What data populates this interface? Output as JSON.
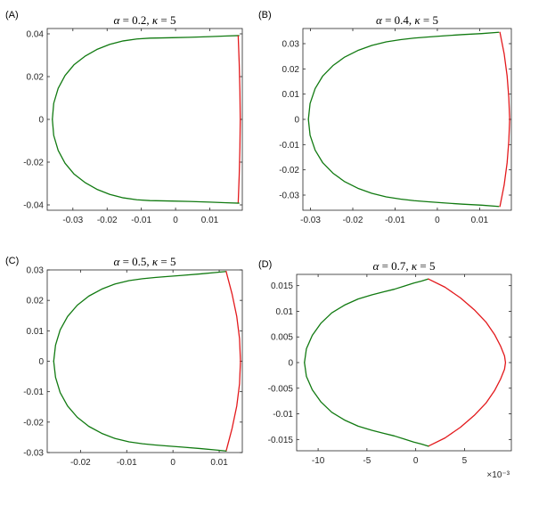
{
  "colors": {
    "boundary_green": "#117a11",
    "boundary_red": "#e3191c",
    "axes": "#262626"
  },
  "chart_data": [
    {
      "type": "line",
      "panel": "(A)",
      "title": {
        "alpha": "0.2",
        "kappa": "5"
      },
      "xlim": [
        -0.0375,
        0.0195
      ],
      "ylim": [
        -0.0425,
        0.0425
      ],
      "xticks": [
        -0.03,
        -0.02,
        -0.01,
        0,
        0.01
      ],
      "yticks": [
        -0.04,
        -0.02,
        0,
        0.02,
        0.04
      ],
      "tick_decimals": 2,
      "exponent_label": "",
      "series": [
        {
          "color": "green",
          "x": [
            -0.036,
            -0.0356,
            -0.0343,
            -0.0323,
            -0.0297,
            -0.0265,
            -0.023,
            -0.0192,
            -0.0153,
            -0.0113,
            -0.0075,
            -0.004,
            -0.001,
            0.004,
            0.01,
            0.015,
            0.0185
          ],
          "y": [
            0,
            0.0075,
            0.0145,
            0.0205,
            0.0255,
            0.0295,
            0.0327,
            0.0351,
            0.0367,
            0.0376,
            0.038,
            0.0381,
            0.0382,
            0.0384,
            0.0387,
            0.039,
            0.0392
          ]
        },
        {
          "color": "red",
          "x": [
            0.0183,
            0.0186,
            0.0188,
            0.0189,
            0.0188,
            0.0186,
            0.0183
          ],
          "y": [
            0.039,
            0.026,
            0.013,
            0,
            -0.013,
            -0.026,
            -0.039
          ]
        },
        {
          "color": "green",
          "x": [
            -0.036,
            -0.0356,
            -0.0343,
            -0.0323,
            -0.0297,
            -0.0265,
            -0.023,
            -0.0192,
            -0.0153,
            -0.0113,
            -0.0075,
            -0.004,
            -0.001,
            0.004,
            0.01,
            0.015,
            0.0185
          ],
          "y": [
            0,
            -0.0075,
            -0.0145,
            -0.0205,
            -0.0255,
            -0.0295,
            -0.0327,
            -0.0351,
            -0.0367,
            -0.0376,
            -0.038,
            -0.0381,
            -0.0382,
            -0.0384,
            -0.0387,
            -0.039,
            -0.0392
          ]
        }
      ]
    },
    {
      "type": "line",
      "panel": "(B)",
      "title": {
        "alpha": "0.4",
        "kappa": "5"
      },
      "xlim": [
        -0.0318,
        0.0175
      ],
      "ylim": [
        -0.036,
        0.036
      ],
      "xticks": [
        -0.03,
        -0.02,
        -0.01,
        0,
        0.01
      ],
      "yticks": [
        -0.03,
        -0.02,
        -0.01,
        0,
        0.01,
        0.02,
        0.03
      ],
      "tick_decimals": 2,
      "exponent_label": "",
      "series": [
        {
          "color": "green",
          "x": [
            -0.0305,
            -0.0301,
            -0.0289,
            -0.0271,
            -0.0247,
            -0.0219,
            -0.0188,
            -0.0155,
            -0.0121,
            -0.0087,
            -0.0055,
            -0.0025,
            0.0015,
            0.006,
            0.0105,
            0.0145
          ],
          "y": [
            0,
            0.0063,
            0.0122,
            0.0172,
            0.0213,
            0.0247,
            0.0273,
            0.0293,
            0.0307,
            0.0316,
            0.0322,
            0.0326,
            0.0331,
            0.0336,
            0.034,
            0.0345
          ]
        },
        {
          "color": "red",
          "x": [
            0.0148,
            0.0158,
            0.0165,
            0.0169,
            0.0171,
            0.0169,
            0.0165,
            0.0158,
            0.0148
          ],
          "y": [
            0.0345,
            0.026,
            0.0172,
            0.0086,
            0,
            -0.0086,
            -0.0172,
            -0.026,
            -0.0345
          ]
        },
        {
          "color": "green",
          "x": [
            -0.0305,
            -0.0301,
            -0.0289,
            -0.0271,
            -0.0247,
            -0.0219,
            -0.0188,
            -0.0155,
            -0.0121,
            -0.0087,
            -0.0055,
            -0.0025,
            0.0015,
            0.006,
            0.0105,
            0.0145
          ],
          "y": [
            0,
            -0.0063,
            -0.0122,
            -0.0172,
            -0.0213,
            -0.0247,
            -0.0273,
            -0.0293,
            -0.0307,
            -0.0316,
            -0.0322,
            -0.0326,
            -0.0331,
            -0.0336,
            -0.034,
            -0.0345
          ]
        }
      ]
    },
    {
      "type": "line",
      "panel": "(C)",
      "title": {
        "alpha": "0.5",
        "kappa": "5"
      },
      "xlim": [
        -0.0272,
        0.015
      ],
      "ylim": [
        -0.03,
        0.03
      ],
      "xticks": [
        -0.02,
        -0.01,
        0,
        0.01
      ],
      "yticks": [
        -0.03,
        -0.02,
        -0.01,
        0,
        0.01,
        0.02,
        0.03
      ],
      "tick_decimals": 2,
      "exponent_label": "",
      "series": [
        {
          "color": "green",
          "x": [
            -0.0258,
            -0.0254,
            -0.0244,
            -0.0228,
            -0.0207,
            -0.0182,
            -0.0154,
            -0.0125,
            -0.0095,
            -0.0066,
            -0.0039,
            -0.0015,
            0.002,
            0.006,
            0.0095,
            0.0115
          ],
          "y": [
            0,
            0.0053,
            0.0103,
            0.0147,
            0.0184,
            0.0214,
            0.0237,
            0.0254,
            0.0265,
            0.0271,
            0.0275,
            0.0278,
            0.0282,
            0.0287,
            0.0292,
            0.0295
          ]
        },
        {
          "color": "red",
          "x": [
            0.0115,
            0.0128,
            0.0138,
            0.0144,
            0.0146,
            0.0144,
            0.0138,
            0.0128,
            0.0115
          ],
          "y": [
            0.0295,
            0.022,
            0.0147,
            0.0074,
            0,
            -0.0074,
            -0.0147,
            -0.022,
            -0.0295
          ]
        },
        {
          "color": "green",
          "x": [
            -0.0258,
            -0.0254,
            -0.0244,
            -0.0228,
            -0.0207,
            -0.0182,
            -0.0154,
            -0.0125,
            -0.0095,
            -0.0066,
            -0.0039,
            -0.0015,
            0.002,
            0.006,
            0.0095,
            0.0115
          ],
          "y": [
            0,
            -0.0053,
            -0.0103,
            -0.0147,
            -0.0184,
            -0.0214,
            -0.0237,
            -0.0254,
            -0.0265,
            -0.0271,
            -0.0275,
            -0.0278,
            -0.0282,
            -0.0287,
            -0.0292,
            -0.0295
          ]
        }
      ]
    },
    {
      "type": "line",
      "panel": "(D)",
      "title": {
        "alpha": "0.7",
        "kappa": "5"
      },
      "xlim": [
        -12.2,
        9.8
      ],
      "ylim": [
        -0.0172,
        0.0172
      ],
      "xticks": [
        -10,
        -5,
        0,
        5
      ],
      "yticks": [
        -0.015,
        -0.01,
        -0.005,
        0,
        0.005,
        0.01,
        0.015
      ],
      "tick_decimals": 3,
      "exponent_label": "×10⁻³",
      "series": [
        {
          "color": "green",
          "x": [
            -11.4,
            -11.2,
            -10.6,
            -9.7,
            -8.6,
            -7.3,
            -5.9,
            -4.5,
            -3.3,
            -2.2,
            -1.2,
            -0.2,
            0.6,
            1.3
          ],
          "y": [
            0,
            0.0027,
            0.0053,
            0.0077,
            0.0097,
            0.0112,
            0.0124,
            0.0132,
            0.0138,
            0.0143,
            0.0149,
            0.0155,
            0.0159,
            0.0163
          ]
        },
        {
          "color": "red",
          "x": [
            1.3,
            3.0,
            4.6,
            6.0,
            7.2,
            8.1,
            8.7,
            9.1,
            9.2,
            9.1,
            8.7,
            8.1,
            7.2,
            6.0,
            4.6,
            3.0,
            1.3
          ],
          "y": [
            0.0163,
            0.0147,
            0.0126,
            0.0103,
            0.0079,
            0.0054,
            0.0032,
            0.0013,
            0,
            -0.0013,
            -0.0032,
            -0.0054,
            -0.0079,
            -0.0103,
            -0.0126,
            -0.0147,
            -0.0163
          ]
        },
        {
          "color": "green",
          "x": [
            -11.4,
            -11.2,
            -10.6,
            -9.7,
            -8.6,
            -7.3,
            -5.9,
            -4.5,
            -3.3,
            -2.2,
            -1.2,
            -0.2,
            0.6,
            1.3
          ],
          "y": [
            0,
            -0.0027,
            -0.0053,
            -0.0077,
            -0.0097,
            -0.0112,
            -0.0124,
            -0.0132,
            -0.0138,
            -0.0143,
            -0.0149,
            -0.0155,
            -0.0159,
            -0.0163
          ]
        }
      ]
    }
  ]
}
